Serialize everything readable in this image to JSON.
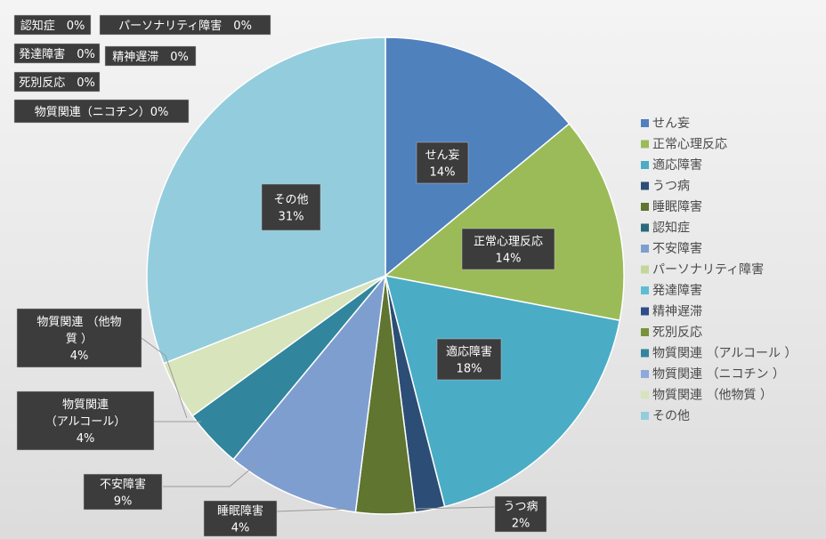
{
  "chart_data": {
    "type": "pie",
    "categories": [
      "せん妄",
      "正常心理反応",
      "適応障害",
      "うつ病",
      "睡眠障害",
      "認知症",
      "不安障害",
      "パーソナリティ障害",
      "発達障害",
      "精神遅滞",
      "死別反応",
      "物質関連 （アルコール ）",
      "物質関連 （ニコチン ）",
      "物質関連 （他物質 ）",
      "その他"
    ],
    "values": [
      14,
      14,
      18,
      2,
      4,
      0,
      9,
      0,
      0,
      0,
      0,
      4,
      0,
      4,
      31
    ],
    "percent_labels": [
      "14%",
      "14%",
      "18%",
      "2%",
      "4%",
      "0%",
      "9%",
      "0%",
      "0%",
      "0%",
      "0%",
      "4%",
      "0%",
      "4%",
      "31%"
    ],
    "data_labels": [
      {
        "lines": [
          "せん妄",
          "14%"
        ]
      },
      {
        "lines": [
          "正常心理反応",
          "14%"
        ]
      },
      {
        "lines": [
          "適応障害",
          "18%"
        ]
      },
      {
        "lines": [
          "うつ病",
          "2%"
        ]
      },
      {
        "lines": [
          "睡眠障害",
          "4%"
        ]
      },
      {
        "lines": [
          "認知症　0%"
        ]
      },
      {
        "lines": [
          "不安障害",
          "9%"
        ]
      },
      {
        "lines": [
          "パーソナリティ障害　0%"
        ]
      },
      {
        "lines": [
          "発達障害　0%"
        ]
      },
      {
        "lines": [
          "精神遅滞　0%"
        ]
      },
      {
        "lines": [
          "死別反応　0%"
        ]
      },
      {
        "lines": [
          "物質関連",
          "（アルコール）",
          "4%"
        ]
      },
      {
        "lines": [
          "物質関連（ニコチン）0%"
        ]
      },
      {
        "lines": [
          "物質関連 （他物",
          "質 ）",
          "4%"
        ]
      },
      {
        "lines": [
          "その他",
          "31%"
        ]
      }
    ],
    "colors": [
      "#4f81bd",
      "#9bbb59",
      "#4bacc6",
      "#2c4d75",
      "#5f7530",
      "#276a7c",
      "#7f9ed0",
      "#c3d69b",
      "#5ebdd4",
      "#2f4d8a",
      "#77933c",
      "#31859c",
      "#8ea9db",
      "#d7e4bc",
      "#93cddd"
    ],
    "legend_position": "right",
    "title": "",
    "xlabel": "",
    "ylabel": ""
  }
}
